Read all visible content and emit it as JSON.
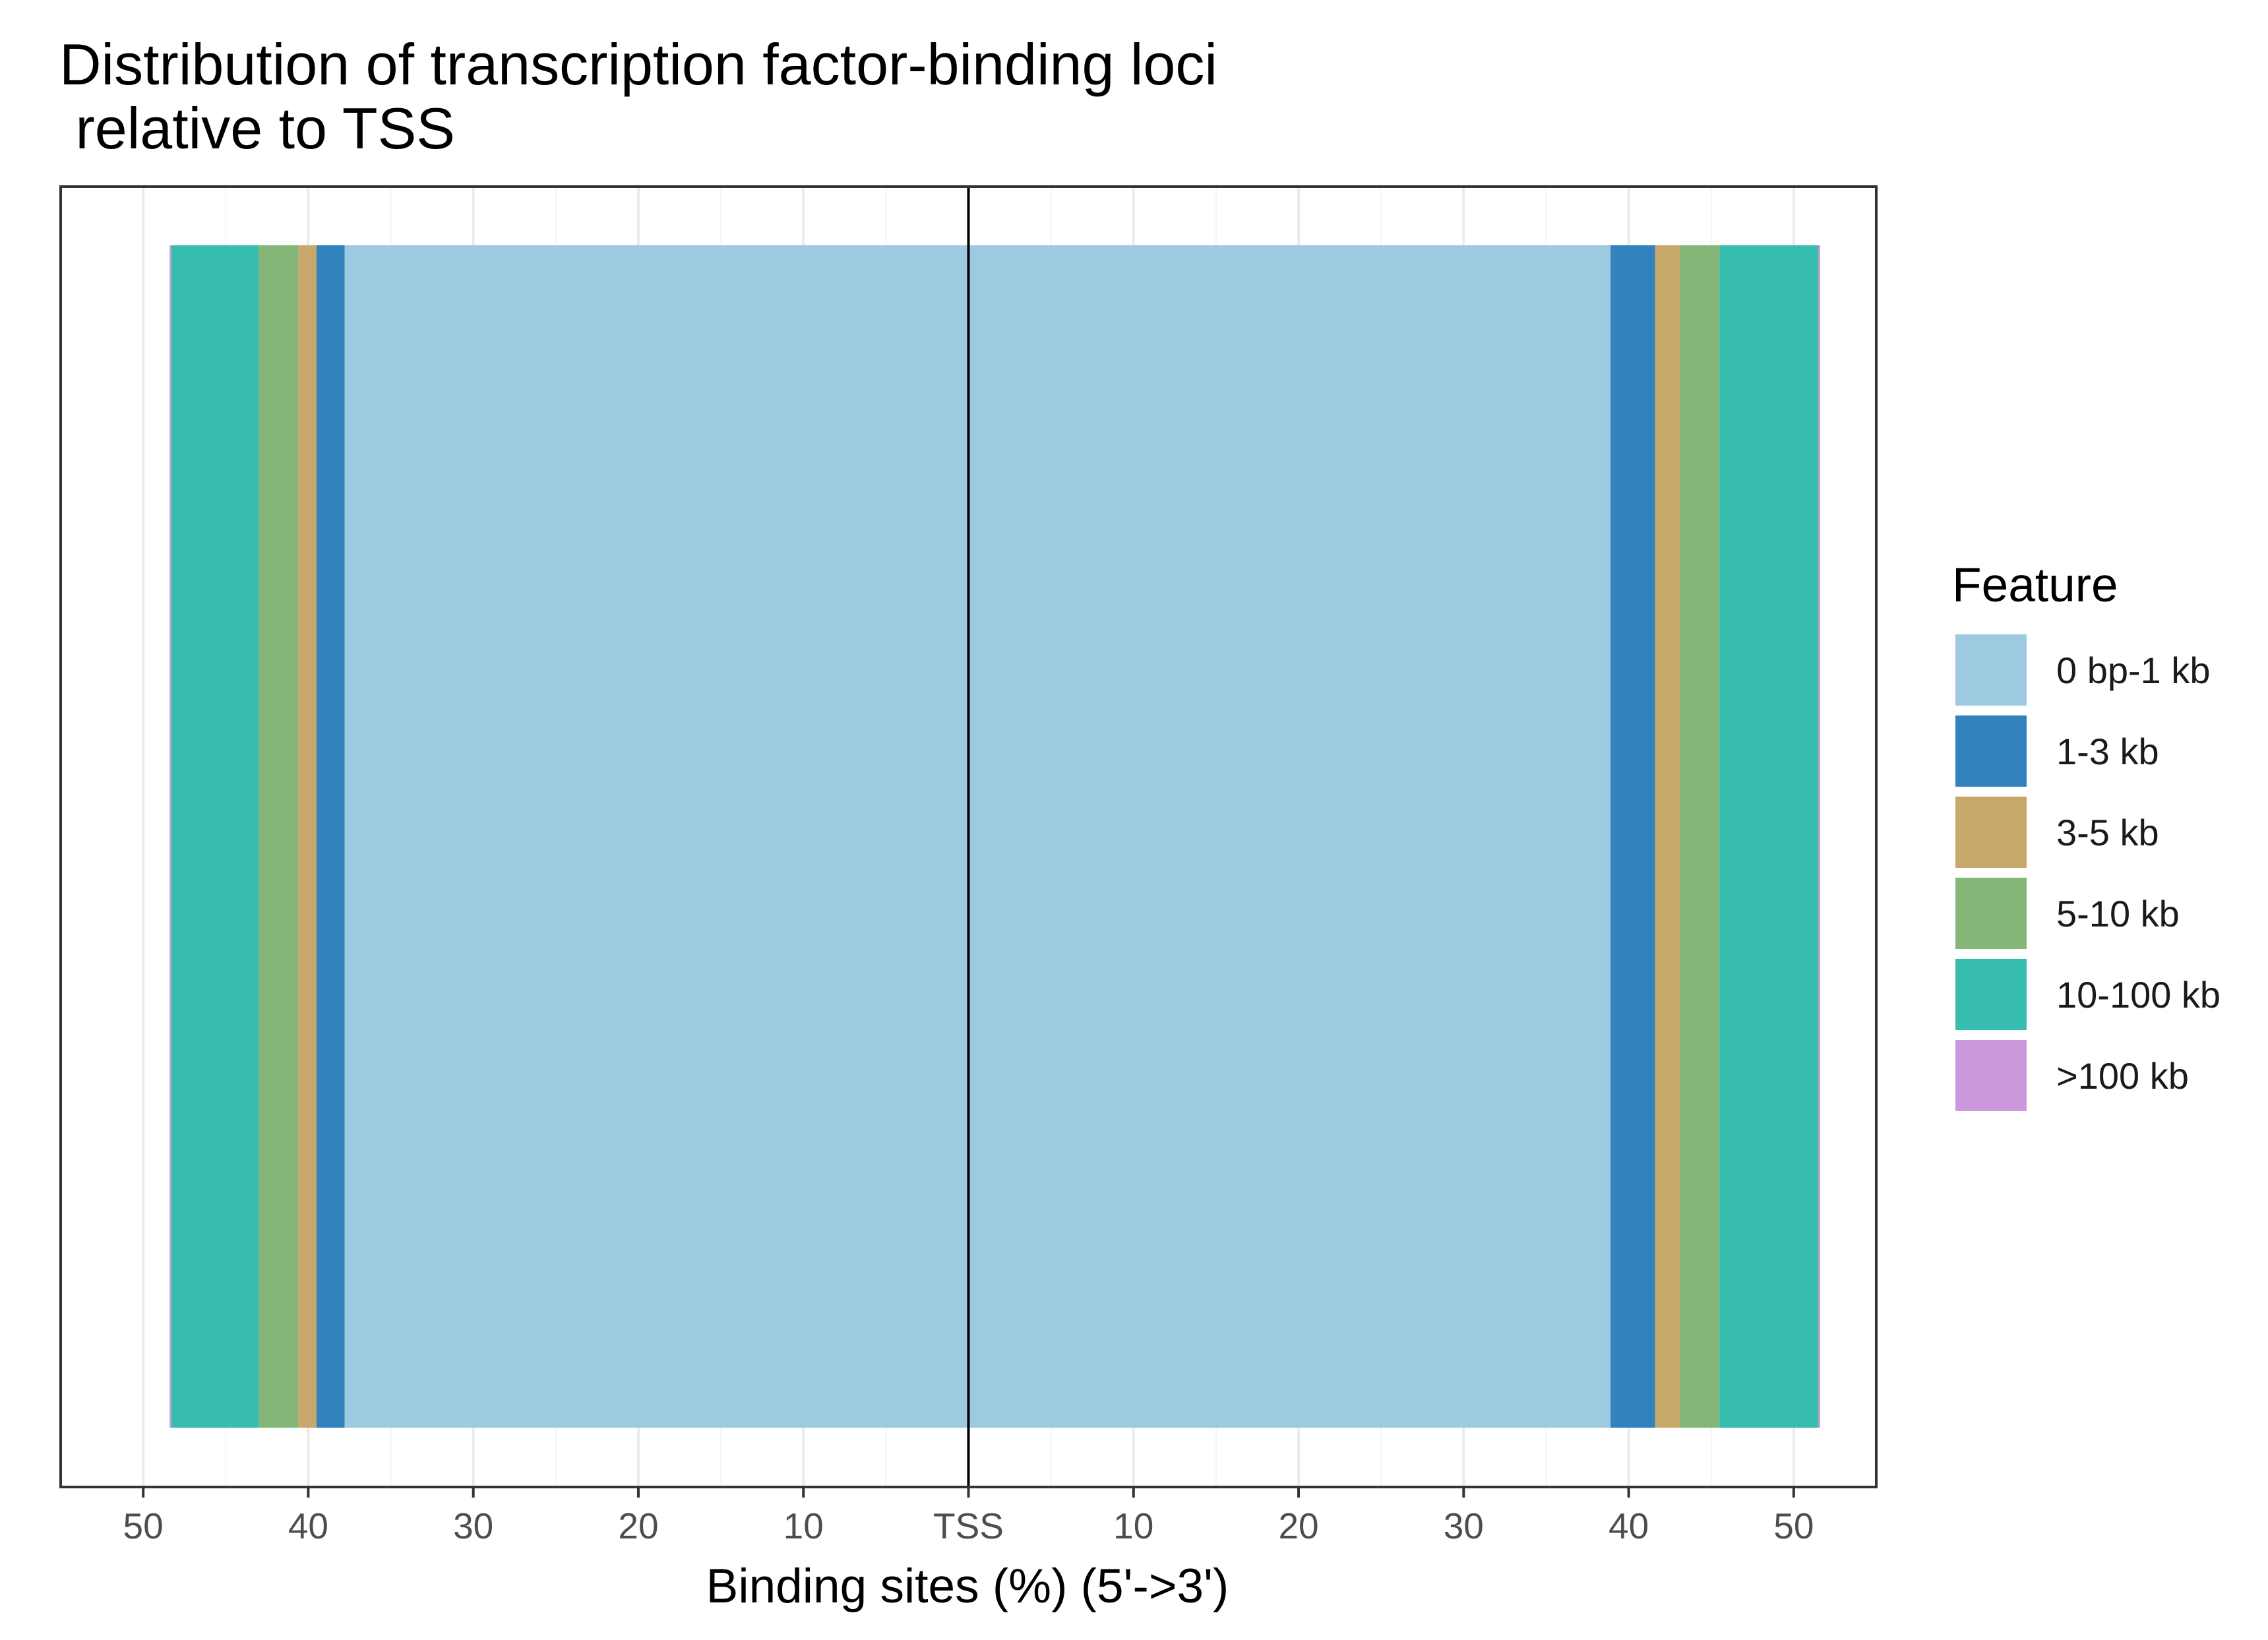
{
  "chart_data": {
    "type": "bar",
    "orientation": "horizontal",
    "stacked": true,
    "title_lines": [
      "Distribution of transcription factor-binding loci",
      " relative to TSS"
    ],
    "xlabel": "Binding sites (%) (5'->3')",
    "ylabel": "",
    "xlim": [
      -55,
      55
    ],
    "x_ticks": [
      {
        "value": -50,
        "label": "50"
      },
      {
        "value": -40,
        "label": "40"
      },
      {
        "value": -30,
        "label": "30"
      },
      {
        "value": -20,
        "label": "20"
      },
      {
        "value": -10,
        "label": "10"
      },
      {
        "value": 0,
        "label": "TSS"
      },
      {
        "value": 10,
        "label": "10"
      },
      {
        "value": 20,
        "label": "20"
      },
      {
        "value": 30,
        "label": "30"
      },
      {
        "value": 40,
        "label": "40"
      },
      {
        "value": 50,
        "label": "50"
      }
    ],
    "grid": true,
    "legend": {
      "title": "Feature",
      "placement": "right"
    },
    "series": [
      {
        "name": "0 bp-1 kb",
        "color": "#9ecae1",
        "upstream": 37.8,
        "downstream": 38.9
      },
      {
        "name": "1-3 kb",
        "color": "#3182bd",
        "upstream": 1.7,
        "downstream": 2.7
      },
      {
        "name": "3-5 kb",
        "color": "#c8a76b",
        "upstream": 1.1,
        "downstream": 1.5
      },
      {
        "name": "5-10 kb",
        "color": "#84b677",
        "upstream": 2.4,
        "downstream": 2.4
      },
      {
        "name": "10-100 kb",
        "color": "#37bdae",
        "upstream": 5.3,
        "downstream": 6.0
      },
      {
        "name": ">100 kb",
        "color": "#cd97dc",
        "upstream": 0.1,
        "downstream": 0.1
      }
    ]
  }
}
